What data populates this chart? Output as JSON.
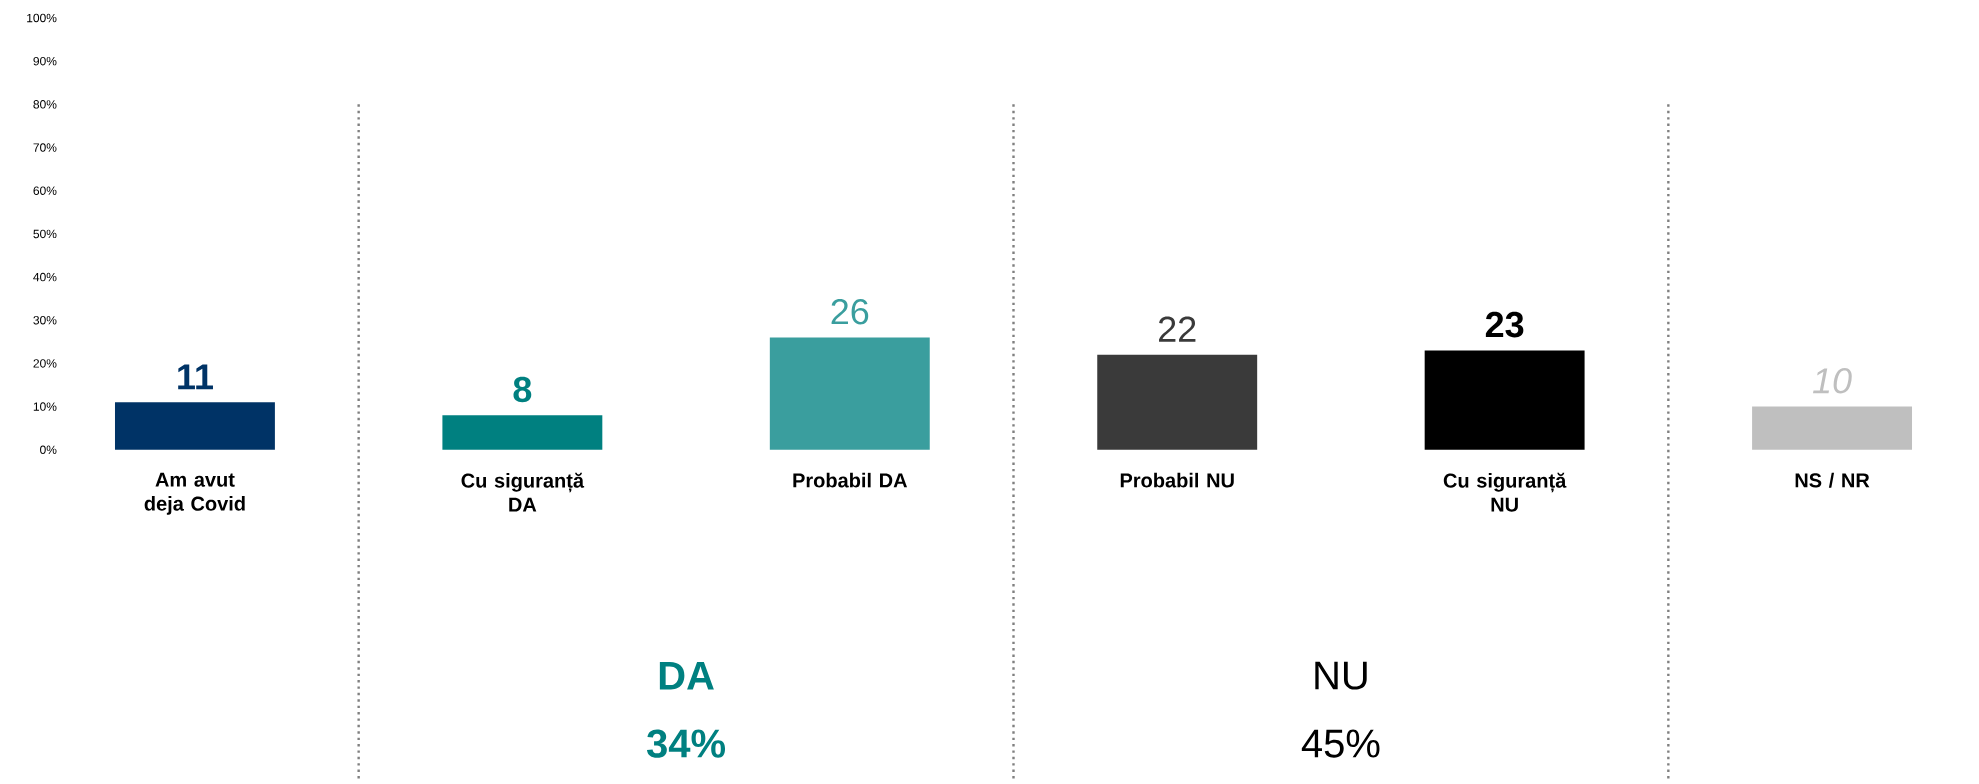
{
  "chart_data": {
    "type": "bar",
    "categories": [
      "Am avut deja Covid",
      "Cu siguranță DA",
      "Probabil DA",
      "Probabil NU",
      "Cu siguranță NU",
      "NS / NR"
    ],
    "values": [
      11,
      8,
      26,
      22,
      23,
      10
    ],
    "colors": [
      "#003366",
      "#008080",
      "#3a9e9e",
      "#3a3a3a",
      "#000000",
      "#bfbfbf"
    ],
    "data_labels": true,
    "ylim": [
      0,
      100
    ],
    "yticks": [
      {
        "value": 0,
        "label": "0%"
      },
      {
        "value": 10,
        "label": "10%"
      },
      {
        "value": 20,
        "label": "20%"
      },
      {
        "value": 30,
        "label": "30%"
      },
      {
        "value": 40,
        "label": "40%"
      },
      {
        "value": 50,
        "label": "50%"
      },
      {
        "value": 60,
        "label": "60%"
      },
      {
        "value": 70,
        "label": "70%"
      },
      {
        "value": 80,
        "label": "80%"
      },
      {
        "value": 90,
        "label": "90%"
      },
      {
        "value": 100,
        "label": "100%"
      }
    ],
    "grid": false,
    "annotations": [
      "DA",
      "34%",
      "NU",
      "45%"
    ]
  }
}
